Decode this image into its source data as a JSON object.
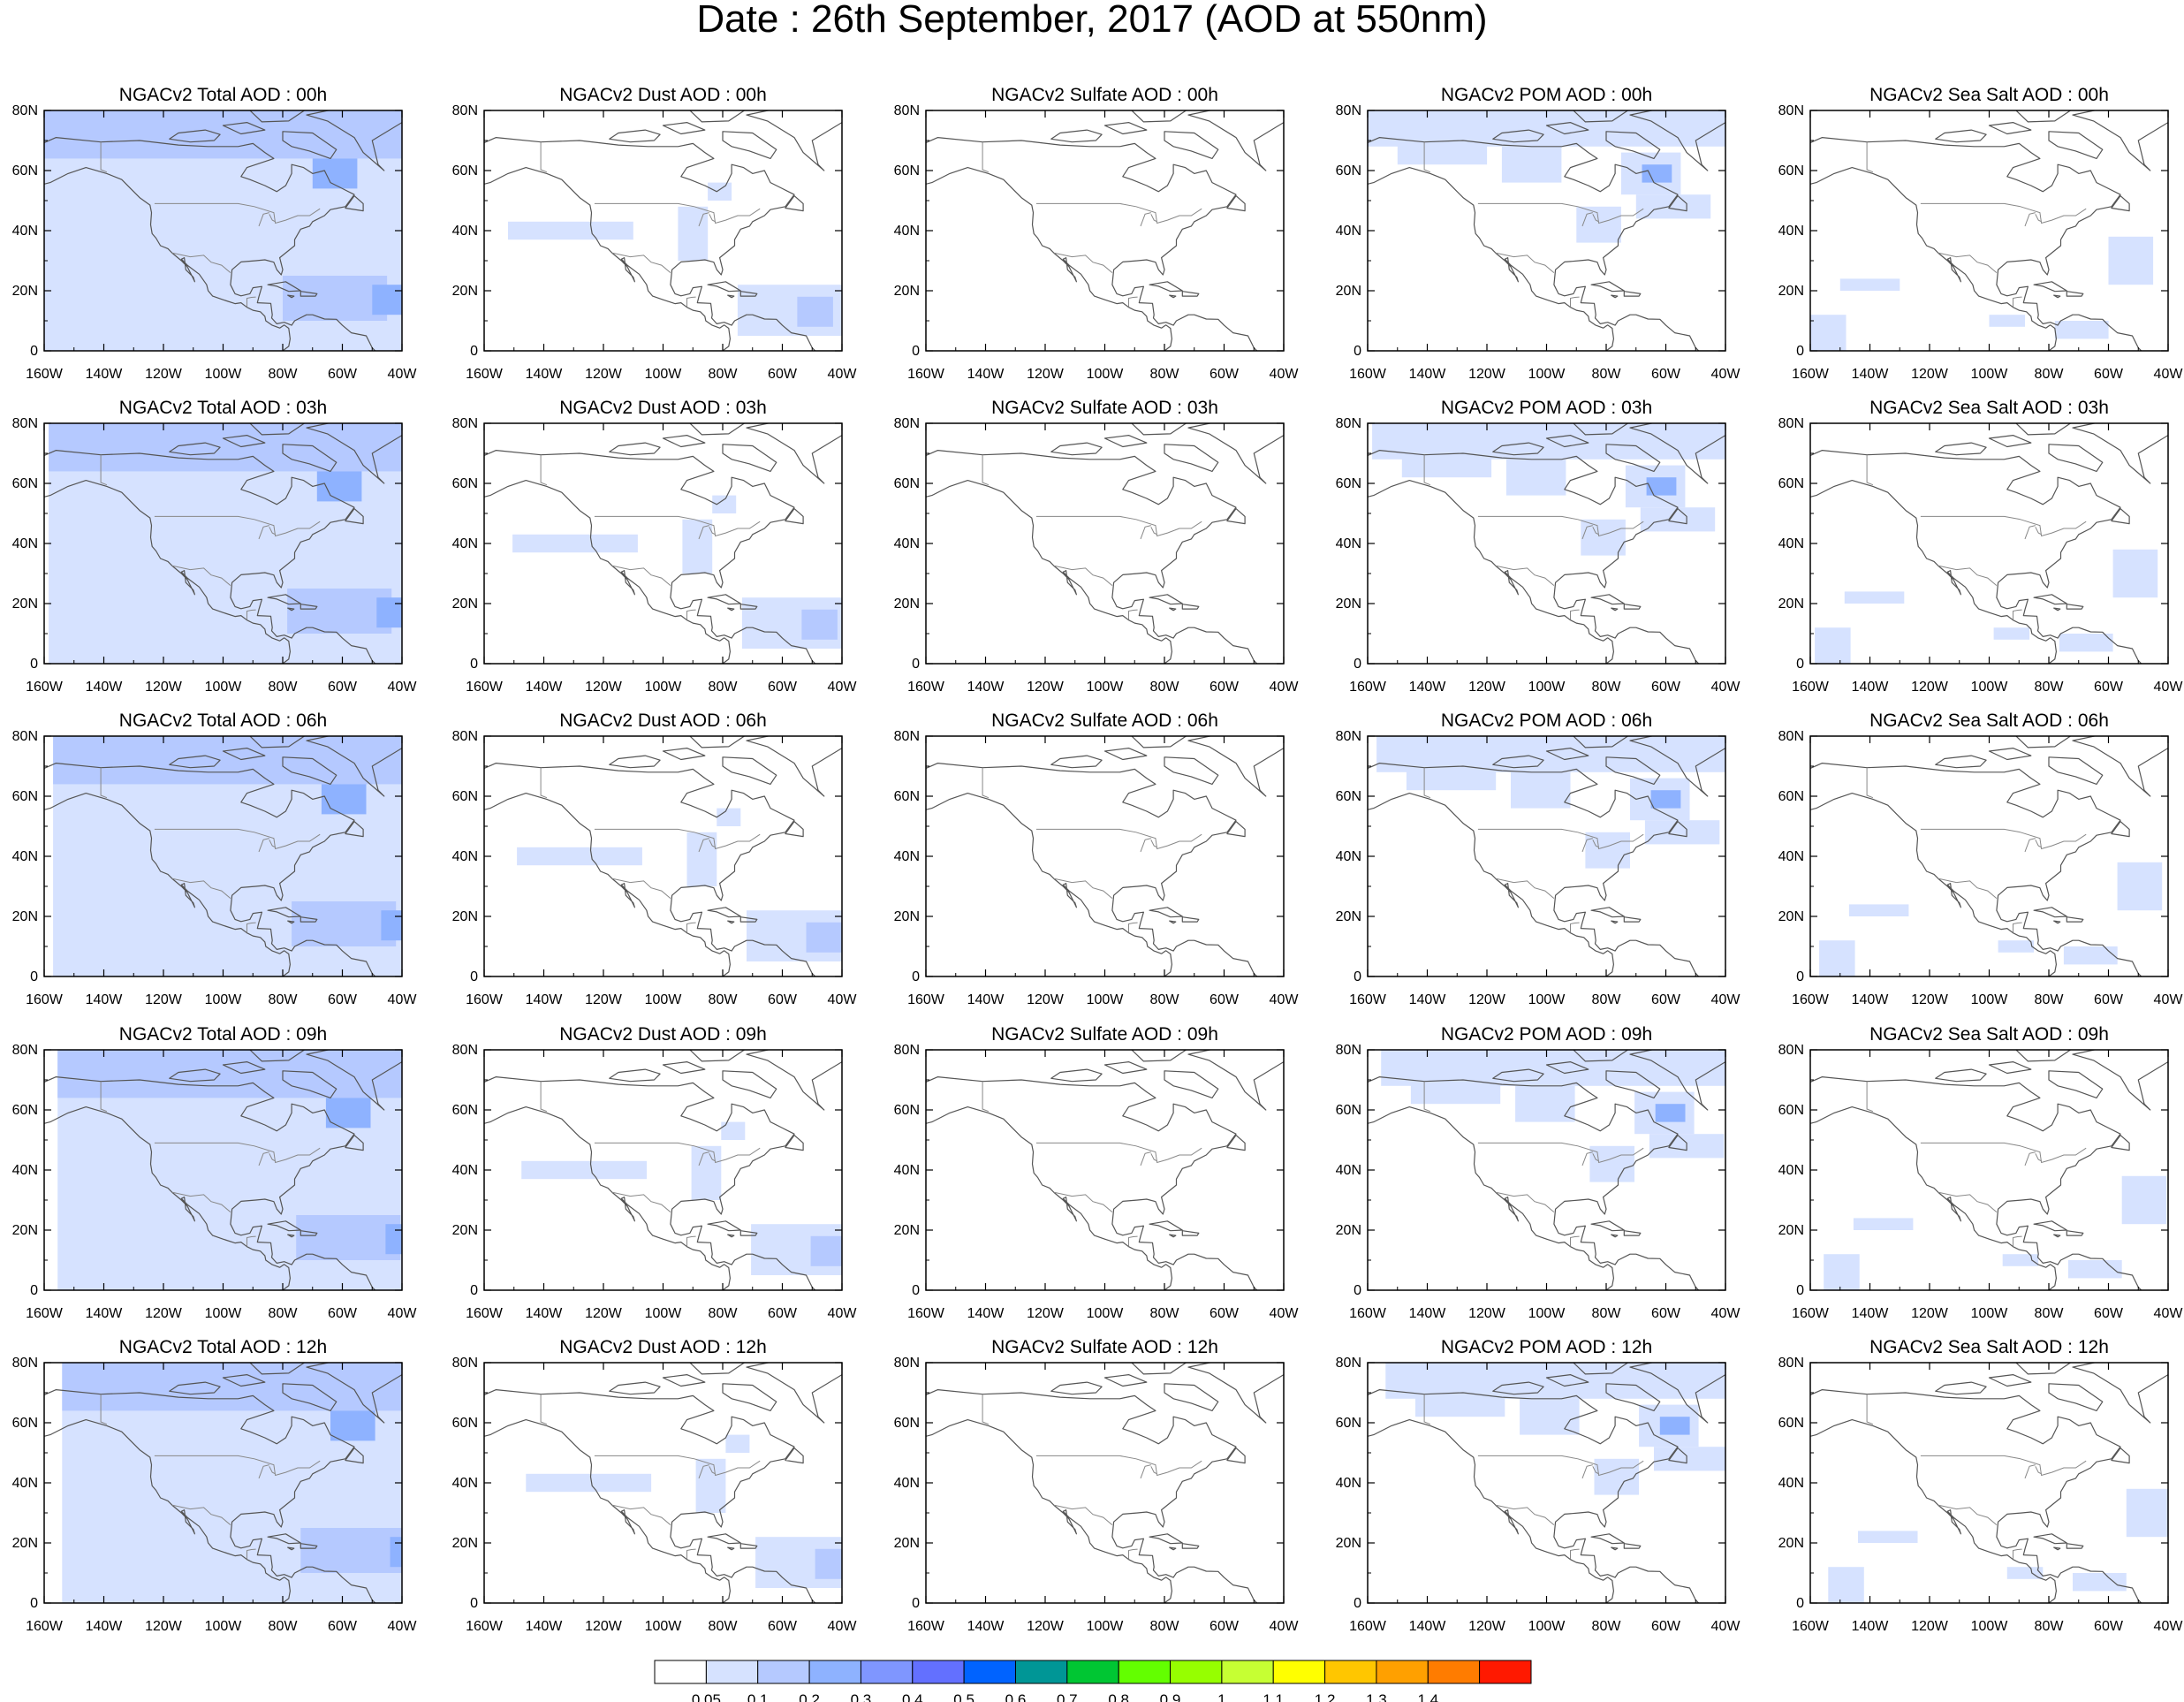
{
  "title": "Date : 26th September, 2017 (AOD at 550nm)",
  "x_ticks": [
    "160W",
    "140W",
    "120W",
    "100W",
    "80W",
    "60W",
    "40W"
  ],
  "y_ticks": [
    "80N",
    "60N",
    "40N",
    "20N",
    "0"
  ],
  "colorbar": {
    "labels": [
      "0.05",
      "0.1",
      "0.2",
      "0.3",
      "0.4",
      "0.5",
      "0.6",
      "0.7",
      "0.8",
      "0.9",
      "1",
      "1.1",
      "1.2",
      "1.3",
      "1.4"
    ],
    "colors": [
      "#ffffff",
      "#d6e2ff",
      "#b5c9ff",
      "#8eb2ff",
      "#7f96ff",
      "#6370ff",
      "#0063ff",
      "#009696",
      "#00c633",
      "#63ff00",
      "#96ff00",
      "#c6ff33",
      "#ffff00",
      "#ffc600",
      "#ffa000",
      "#ff7c00",
      "#ff1900"
    ]
  },
  "panels": [
    [
      "NGACv2 Total AOD : 00h",
      "NGACv2 Dust AOD : 00h",
      "NGACv2 Sulfate AOD : 00h",
      "NGACv2 POM AOD : 00h",
      "NGACv2 Sea Salt AOD : 00h"
    ],
    [
      "NGACv2 Total AOD : 03h",
      "NGACv2 Dust AOD : 03h",
      "NGACv2 Sulfate AOD : 03h",
      "NGACv2 POM AOD : 03h",
      "NGACv2 Sea Salt AOD : 03h"
    ],
    [
      "NGACv2 Total AOD : 06h",
      "NGACv2 Dust AOD : 06h",
      "NGACv2 Sulfate AOD : 06h",
      "NGACv2 POM AOD : 06h",
      "NGACv2 Sea Salt AOD : 06h"
    ],
    [
      "NGACv2 Total AOD : 09h",
      "NGACv2 Dust AOD : 09h",
      "NGACv2 Sulfate AOD : 09h",
      "NGACv2 POM AOD : 09h",
      "NGACv2 Sea Salt  AOD : 09h"
    ],
    [
      "NGACv2 Total AOD  : 12h",
      "NGACv2 Dust AOD : 12h",
      "NGACv2 Sulfate AOD : 12h",
      "NGACv2 POM  AOD : 12h",
      "NGACv2 Sea Salt  AOD : 12h"
    ]
  ],
  "field_colors": {
    "light": "#d6e2ff",
    "medium": "#b5c9ff",
    "strong": "#8eb2ff",
    "coastline": "#555555"
  }
}
